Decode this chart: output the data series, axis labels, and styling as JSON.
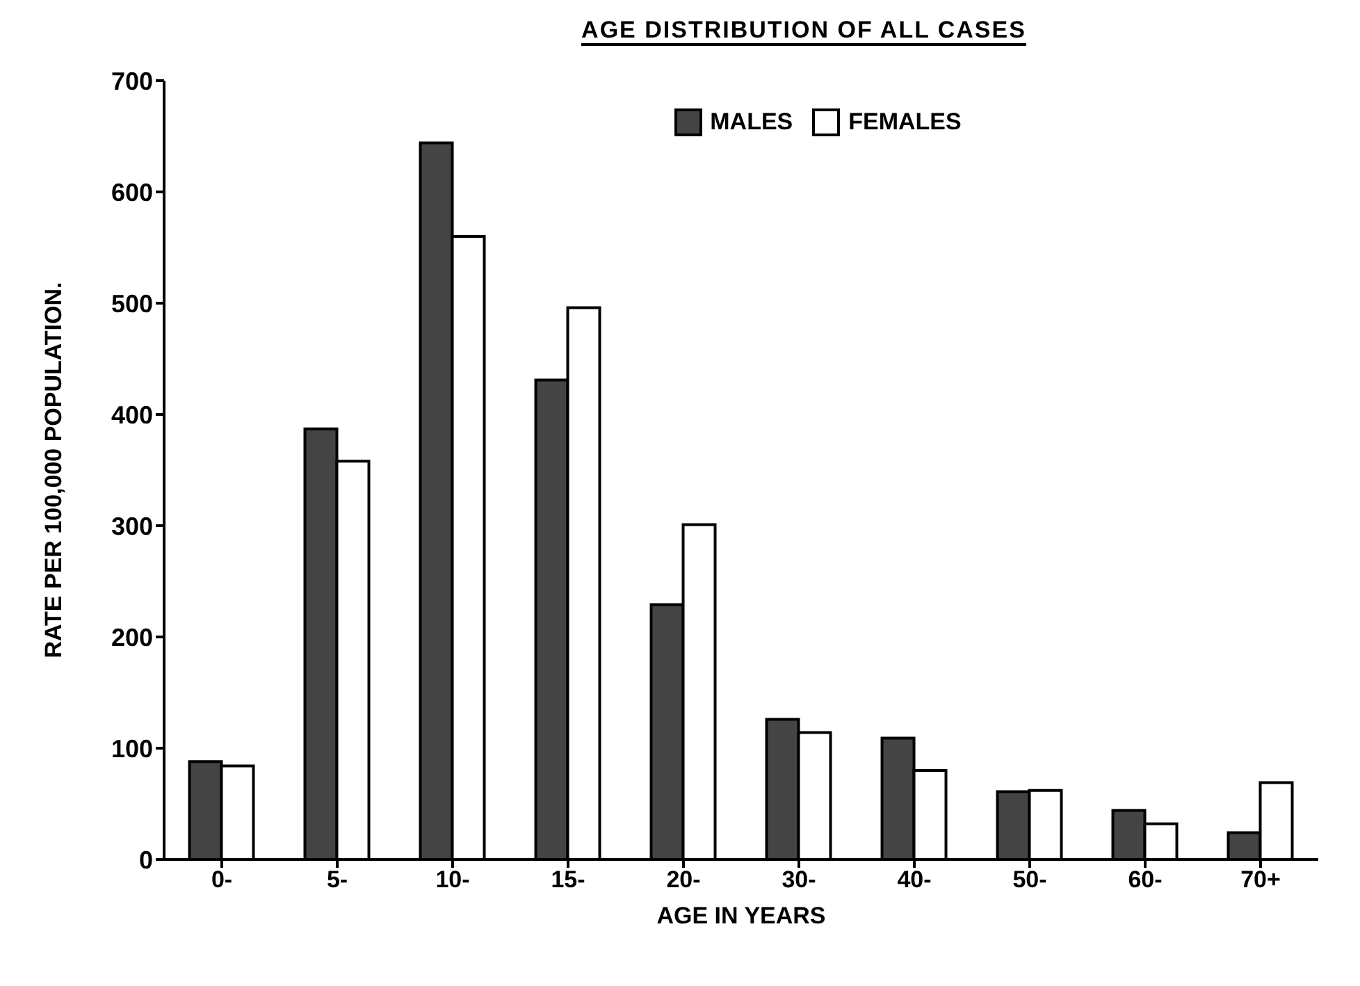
{
  "chart_data": {
    "type": "bar",
    "title": "AGE DISTRIBUTION OF ALL CASES",
    "xlabel": "AGE  IN  YEARS",
    "ylabel": "RATE PER 100,000 POPULATION.",
    "categories": [
      "0-",
      "5-",
      "10-",
      "15-",
      "20-",
      "30-",
      "40-",
      "50-",
      "60-",
      "70+"
    ],
    "series": [
      {
        "name": "MALES",
        "color": "#444444",
        "values": [
          88,
          387,
          644,
          431,
          229,
          126,
          109,
          61,
          44,
          24
        ]
      },
      {
        "name": "FEMALES",
        "color": "#ffffff",
        "values": [
          84,
          358,
          560,
          496,
          301,
          114,
          80,
          62,
          32,
          69
        ]
      }
    ],
    "ylim": [
      0,
      700
    ],
    "yticks": [
      0,
      100,
      200,
      300,
      400,
      500,
      600,
      700
    ],
    "grid": false,
    "legend": "top"
  }
}
